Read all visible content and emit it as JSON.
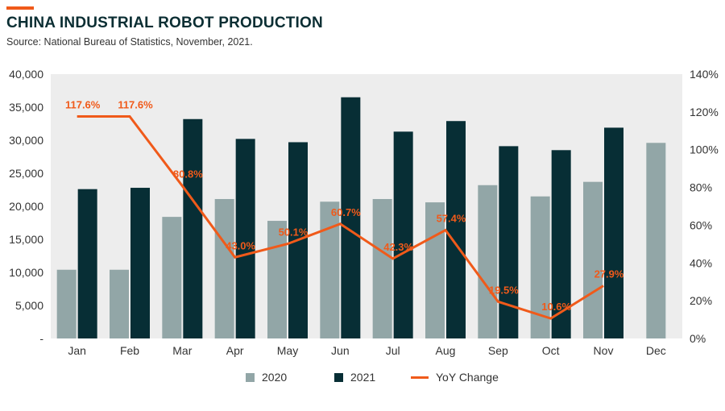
{
  "header": {
    "title": "CHINA INDUSTRIAL ROBOT PRODUCTION",
    "subtitle": "Source: National Bureau of Statistics, November, 2021."
  },
  "colors": {
    "s2020": "#92a6a7",
    "s2021": "#072e35",
    "yoy": "#f05a1a",
    "plot_bg": "#ededed"
  },
  "chart_data": {
    "type": "bar",
    "categories": [
      "Jan",
      "Feb",
      "Mar",
      "Apr",
      "May",
      "Jun",
      "Jul",
      "Aug",
      "Sep",
      "Oct",
      "Nov",
      "Dec"
    ],
    "series": [
      {
        "name": "2020",
        "values": [
          10400,
          10400,
          18400,
          21100,
          17800,
          20700,
          21100,
          20600,
          23200,
          21500,
          23700,
          29600
        ]
      },
      {
        "name": "2021",
        "values": [
          22600,
          22800,
          33200,
          30200,
          29700,
          36500,
          31300,
          32900,
          29100,
          28500,
          31900,
          null
        ]
      }
    ],
    "line_series": {
      "name": "YoY Change",
      "values": [
        117.6,
        117.6,
        80.8,
        43.0,
        50.1,
        60.7,
        42.3,
        57.4,
        19.5,
        10.6,
        27.9,
        null
      ],
      "labels": [
        "117.6%",
        "117.6%",
        "80.8%",
        "43.0%",
        "50.1%",
        "60.7%",
        "42.3%",
        "57.4%",
        "19.5%",
        "10.6%",
        "27.9%",
        ""
      ]
    },
    "ylim_left": [
      0,
      40000
    ],
    "ylim_right": [
      0,
      140
    ],
    "left_ticks": [
      "-",
      "5,000",
      "10,000",
      "15,000",
      "20,000",
      "25,000",
      "30,000",
      "35,000",
      "40,000"
    ],
    "right_ticks": [
      "0%",
      "20%",
      "40%",
      "60%",
      "80%",
      "100%",
      "120%",
      "140%"
    ],
    "legend": [
      "2020",
      "2021",
      "YoY Change"
    ]
  }
}
